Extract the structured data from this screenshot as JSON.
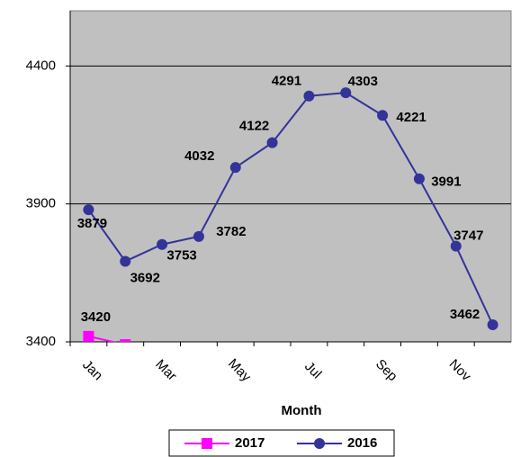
{
  "chart_data": {
    "type": "line",
    "categories": [
      "Jan",
      null,
      "Mar",
      null,
      "May",
      null,
      "Jul",
      null,
      "Sep",
      null,
      "Nov",
      null
    ],
    "series": [
      {
        "name": "2017",
        "color": "#ff00ff",
        "marker": "square",
        "values": [
          3420,
          3390,
          null,
          null,
          null,
          null,
          null,
          null,
          null,
          null,
          null,
          null
        ]
      },
      {
        "name": "2016",
        "color": "#333399",
        "marker": "circle",
        "values": [
          3879,
          3692,
          3753,
          3782,
          4032,
          4122,
          4291,
          4303,
          4221,
          3991,
          3747,
          3462
        ]
      }
    ],
    "x_label": "Month",
    "ylim": [
      3400,
      4600
    ],
    "yticks": [
      3400,
      3900,
      4400
    ],
    "grid": true,
    "legend": "bottom"
  }
}
